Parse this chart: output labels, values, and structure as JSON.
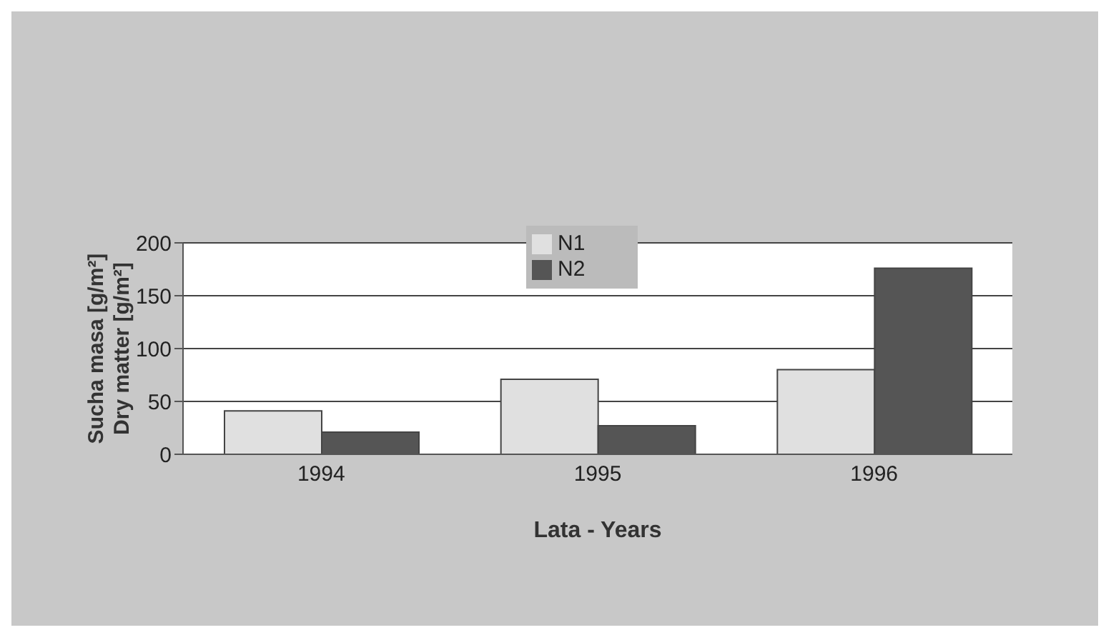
{
  "chart_data": {
    "type": "bar",
    "xlabel": "Lata - Years",
    "ylabel": "Sucha masa [g/m²]\nDry matter [g/m²]",
    "categories": [
      "1994",
      "1995",
      "1996"
    ],
    "series": [
      {
        "name": "N1",
        "color": "#e0e0e0",
        "values": [
          41,
          71,
          80
        ]
      },
      {
        "name": "N2",
        "color": "#555555",
        "values": [
          21,
          27,
          176
        ]
      }
    ],
    "ylim": [
      0,
      200
    ],
    "yticks": [
      0,
      50,
      100,
      150,
      200
    ],
    "grid": "y",
    "legend": "top"
  }
}
